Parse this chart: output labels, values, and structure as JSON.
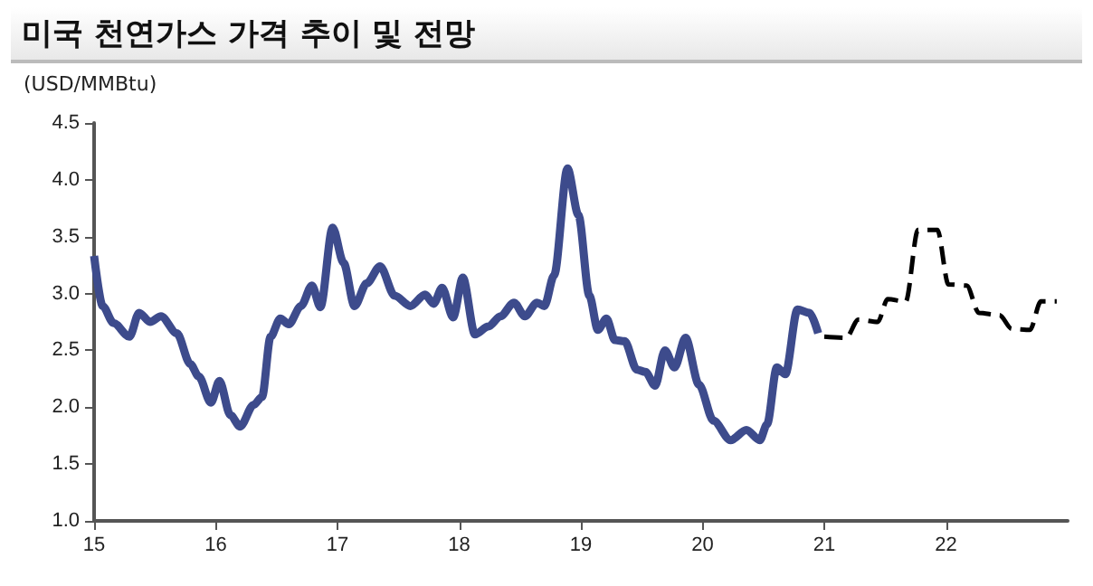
{
  "chart_data": {
    "type": "line",
    "title": "미국 천연가스 가격 추이 및 전망",
    "ylabel": "(USD/MMBtu)",
    "xlim": [
      15,
      23
    ],
    "xticks": [
      15,
      16,
      17,
      18,
      19,
      20,
      21,
      22
    ],
    "ylim": [
      1.0,
      4.5
    ],
    "yticks": [
      {
        "value": 1,
        "label": "1.0"
      },
      {
        "value": 1.5,
        "label": "1.5"
      },
      {
        "value": 2,
        "label": "2.0"
      },
      {
        "value": 2.5,
        "label": "2.5"
      },
      {
        "value": 3,
        "label": "3.0"
      },
      {
        "value": 3.5,
        "label": "3.5"
      },
      {
        "value": 4,
        "label": "4.0"
      },
      {
        "value": 4.5,
        "label": "4.5"
      }
    ],
    "grid": false,
    "marker": "none",
    "series": [
      {
        "color": "#3d4b8c",
        "line_style": "solid",
        "x": [
          15.0,
          15.07,
          15.16,
          15.29,
          15.37,
          15.46,
          15.55,
          15.68,
          15.79,
          15.86,
          15.96,
          16.03,
          16.12,
          16.2,
          16.31,
          16.38,
          16.45,
          16.53,
          16.6,
          16.7,
          16.79,
          16.86,
          16.96,
          17.05,
          17.14,
          17.24,
          17.35,
          17.47,
          17.6,
          17.72,
          17.79,
          17.86,
          17.95,
          18.03,
          18.13,
          18.24,
          18.34,
          18.45,
          18.54,
          18.64,
          18.7,
          18.78,
          18.89,
          18.98,
          19.07,
          19.14,
          19.21,
          19.28,
          19.36,
          19.46,
          19.53,
          19.61,
          19.69,
          19.77,
          19.86,
          19.97,
          20.09,
          20.23,
          20.36,
          20.47,
          20.53,
          20.61,
          20.68,
          20.78,
          20.88,
          20.95
        ],
        "values": [
          3.33,
          2.89,
          2.74,
          2.62,
          2.83,
          2.75,
          2.8,
          2.65,
          2.38,
          2.27,
          2.04,
          2.23,
          1.93,
          1.83,
          2.02,
          2.09,
          2.62,
          2.78,
          2.73,
          2.89,
          3.07,
          2.88,
          3.58,
          3.27,
          2.89,
          3.09,
          3.24,
          2.98,
          2.89,
          2.99,
          2.91,
          3.05,
          2.79,
          3.14,
          2.64,
          2.71,
          2.8,
          2.92,
          2.8,
          2.92,
          2.89,
          3.16,
          4.1,
          3.69,
          2.98,
          2.68,
          2.78,
          2.59,
          2.58,
          2.33,
          2.31,
          2.19,
          2.5,
          2.35,
          2.61,
          2.2,
          1.88,
          1.71,
          1.8,
          1.71,
          1.85,
          2.35,
          2.29,
          2.86,
          2.83,
          2.65
        ]
      },
      {
        "color": "#000000",
        "line_style": "dashed",
        "x": [
          21.0,
          21.18,
          21.28,
          21.44,
          21.52,
          21.67,
          21.77,
          21.93,
          22.02,
          22.17,
          22.27,
          22.44,
          22.54,
          22.69,
          22.78,
          22.91
        ],
        "values": [
          2.62,
          2.61,
          2.77,
          2.75,
          2.95,
          2.93,
          3.56,
          3.56,
          3.08,
          3.07,
          2.83,
          2.81,
          2.69,
          2.68,
          2.93,
          2.93
        ]
      }
    ]
  }
}
